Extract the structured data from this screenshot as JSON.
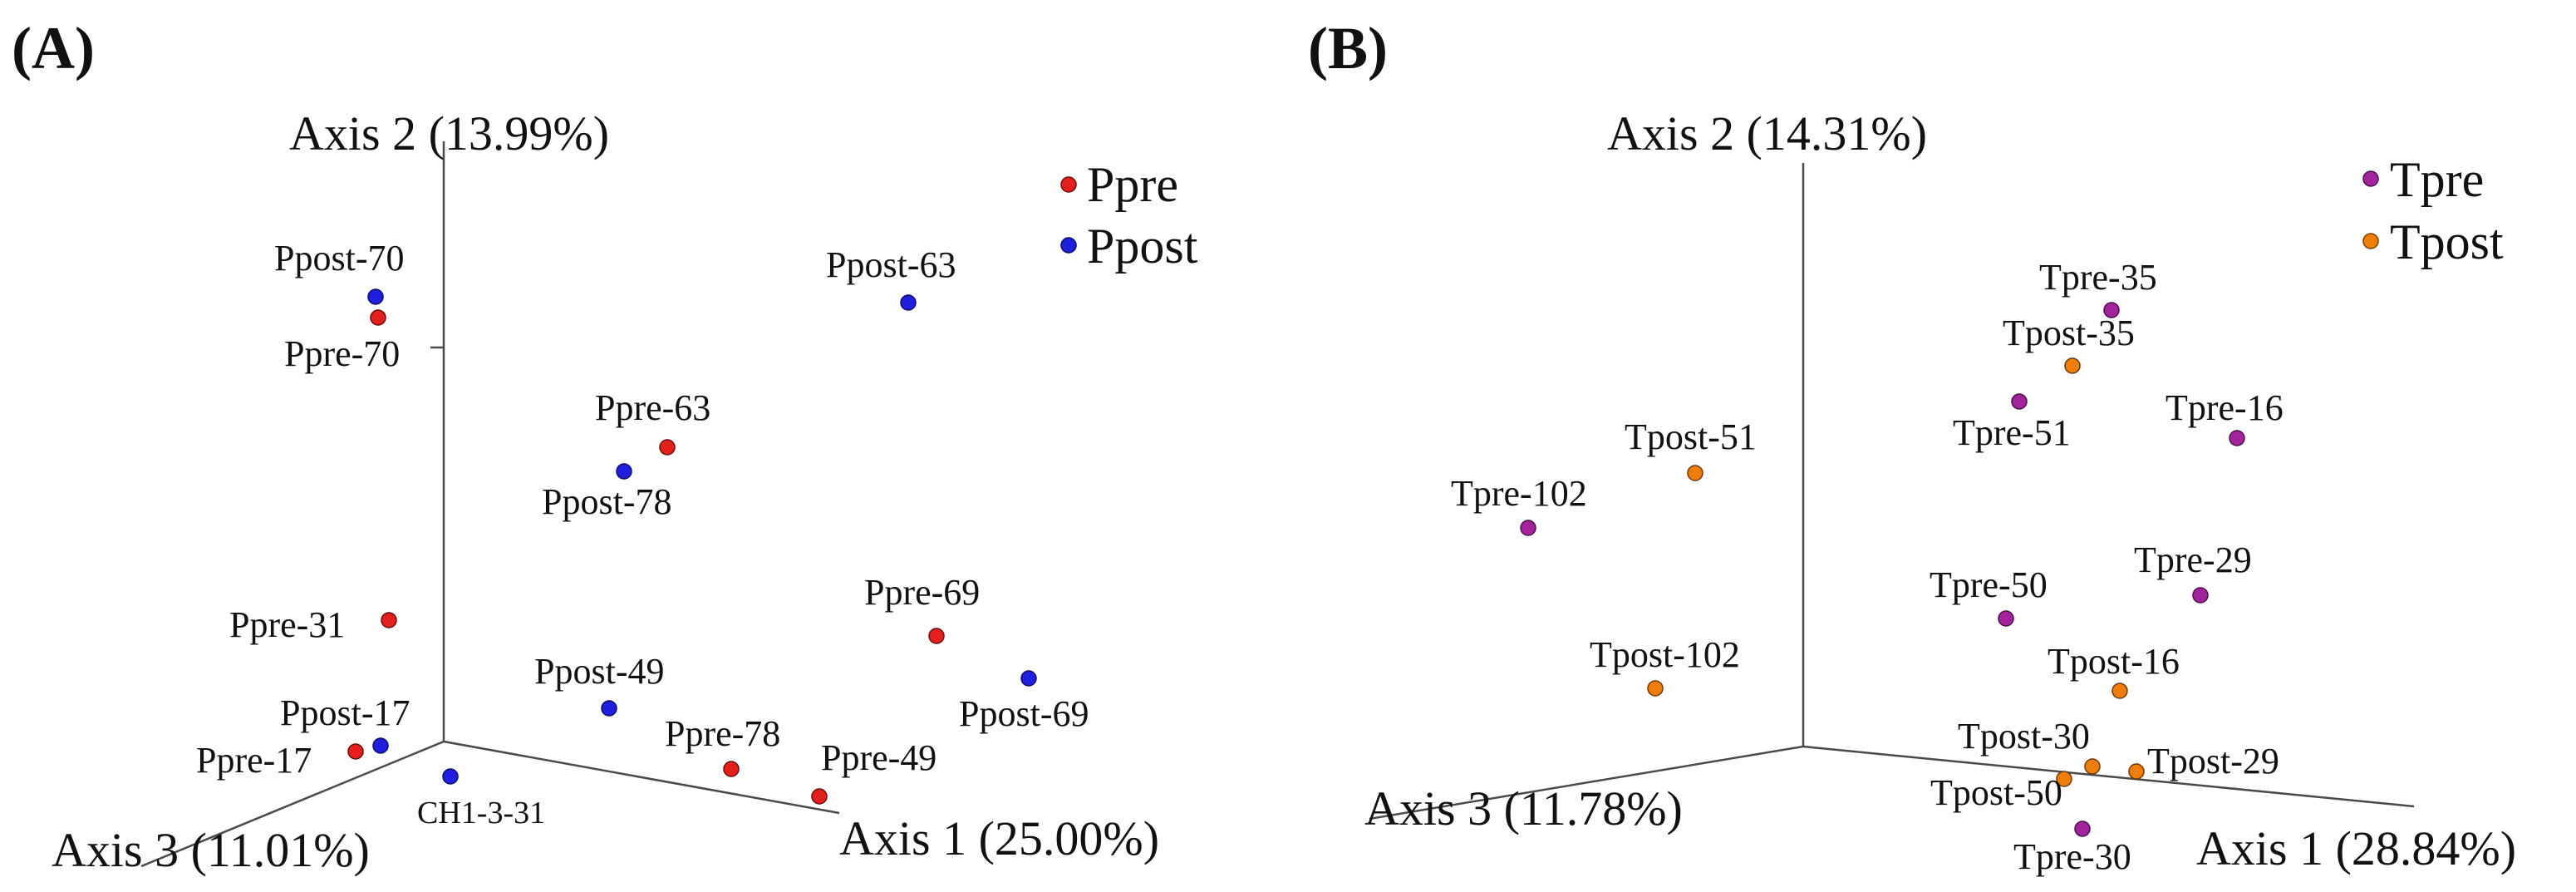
{
  "chart_data": [
    {
      "type": "scatter",
      "projection": "3d",
      "panel_label": "(A)",
      "axes": {
        "x": "Axis 1 (25.00%)",
        "y": "Axis 2 (13.99%)",
        "z": "Axis 3 (11.01%)"
      },
      "legend": [
        {
          "name": "Ppre",
          "color": "#e3201b"
        },
        {
          "name": "Ppost",
          "color": "#1f1fe0"
        }
      ],
      "points": [
        {
          "label": "Ppost-70",
          "group": "Ppost",
          "x": 0.08,
          "y": 0.93,
          "z": 0.65
        },
        {
          "label": "Ppre-70",
          "group": "Ppre",
          "x": 0.08,
          "y": 0.9,
          "z": 0.65
        },
        {
          "label": "Ppost-63",
          "group": "Ppost",
          "x": 0.72,
          "y": 0.88,
          "z": 0.15
        },
        {
          "label": "Ppre-63",
          "group": "Ppre",
          "x": 0.4,
          "y": 0.63,
          "z": 0.25
        },
        {
          "label": "Ppost-78",
          "group": "Ppost",
          "x": 0.35,
          "y": 0.6,
          "z": 0.3
        },
        {
          "label": "Ppre-31",
          "group": "Ppre",
          "x": 0.1,
          "y": 0.28,
          "z": 0.55
        },
        {
          "label": "Ppre-69",
          "group": "Ppre",
          "x": 0.72,
          "y": 0.35,
          "z": 0.2
        },
        {
          "label": "Ppost-69",
          "group": "Ppost",
          "x": 0.9,
          "y": 0.28,
          "z": 0.1
        },
        {
          "label": "Ppost-49",
          "group": "Ppost",
          "x": 0.4,
          "y": 0.2,
          "z": 0.45
        },
        {
          "label": "Ppost-17",
          "group": "Ppost",
          "x": 0.05,
          "y": 0.08,
          "z": 0.7
        },
        {
          "label": "Ppre-17",
          "group": "Ppre",
          "x": 0.04,
          "y": 0.07,
          "z": 0.75
        },
        {
          "label": "Ppre-78",
          "group": "Ppre",
          "x": 0.52,
          "y": 0.05,
          "z": 0.4
        },
        {
          "label": "Ppre-49",
          "group": "Ppre",
          "x": 0.72,
          "y": 0.02,
          "z": 0.35
        },
        {
          "label": "CH1-3-31",
          "group": "Ppost",
          "x": 0.2,
          "y": 0.05,
          "z": 0.8
        }
      ]
    },
    {
      "type": "scatter",
      "projection": "3d",
      "panel_label": "(B)",
      "axes": {
        "x": "Axis 1 (28.84%)",
        "y": "Axis 2 (14.31%)",
        "z": "Axis 3 (11.78%)"
      },
      "legend": [
        {
          "name": "Tpre",
          "color": "#a3239d"
        },
        {
          "name": "Tpost",
          "color": "#ef7d0a"
        }
      ],
      "points": [
        {
          "label": "Tpre-35",
          "group": "Tpre",
          "x": 0.55,
          "y": 0.85,
          "z": 0.1
        },
        {
          "label": "Tpost-35",
          "group": "Tpost",
          "x": 0.5,
          "y": 0.78,
          "z": 0.15
        },
        {
          "label": "Tpre-51",
          "group": "Tpre",
          "x": 0.45,
          "y": 0.7,
          "z": 0.2
        },
        {
          "label": "Tpre-16",
          "group": "Tpre",
          "x": 0.85,
          "y": 0.65,
          "z": 0.05
        },
        {
          "label": "Tpost-51",
          "group": "Tpost",
          "x": 0.1,
          "y": 0.6,
          "z": 0.6
        },
        {
          "label": "Tpre-102",
          "group": "Tpre",
          "x": 0.05,
          "y": 0.55,
          "z": 0.9
        },
        {
          "label": "Tpre-29",
          "group": "Tpre",
          "x": 0.8,
          "y": 0.35,
          "z": 0.1
        },
        {
          "label": "Tpre-50",
          "group": "Tpre",
          "x": 0.5,
          "y": 0.32,
          "z": 0.3
        },
        {
          "label": "Tpost-102",
          "group": "Tpost",
          "x": 0.05,
          "y": 0.25,
          "z": 0.75
        },
        {
          "label": "Tpost-16",
          "group": "Tpost",
          "x": 0.65,
          "y": 0.15,
          "z": 0.2
        },
        {
          "label": "Tpost-30",
          "group": "Tpost",
          "x": 0.6,
          "y": 0.05,
          "z": 0.35
        },
        {
          "label": "Tpost-29",
          "group": "Tpost",
          "x": 0.75,
          "y": 0.03,
          "z": 0.25
        },
        {
          "label": "Tpost-50",
          "group": "Tpost",
          "x": 0.55,
          "y": 0.02,
          "z": 0.4
        },
        {
          "label": "Tpre-30",
          "group": "Tpre",
          "x": 0.62,
          "y": 0.0,
          "z": 0.5
        }
      ]
    }
  ]
}
